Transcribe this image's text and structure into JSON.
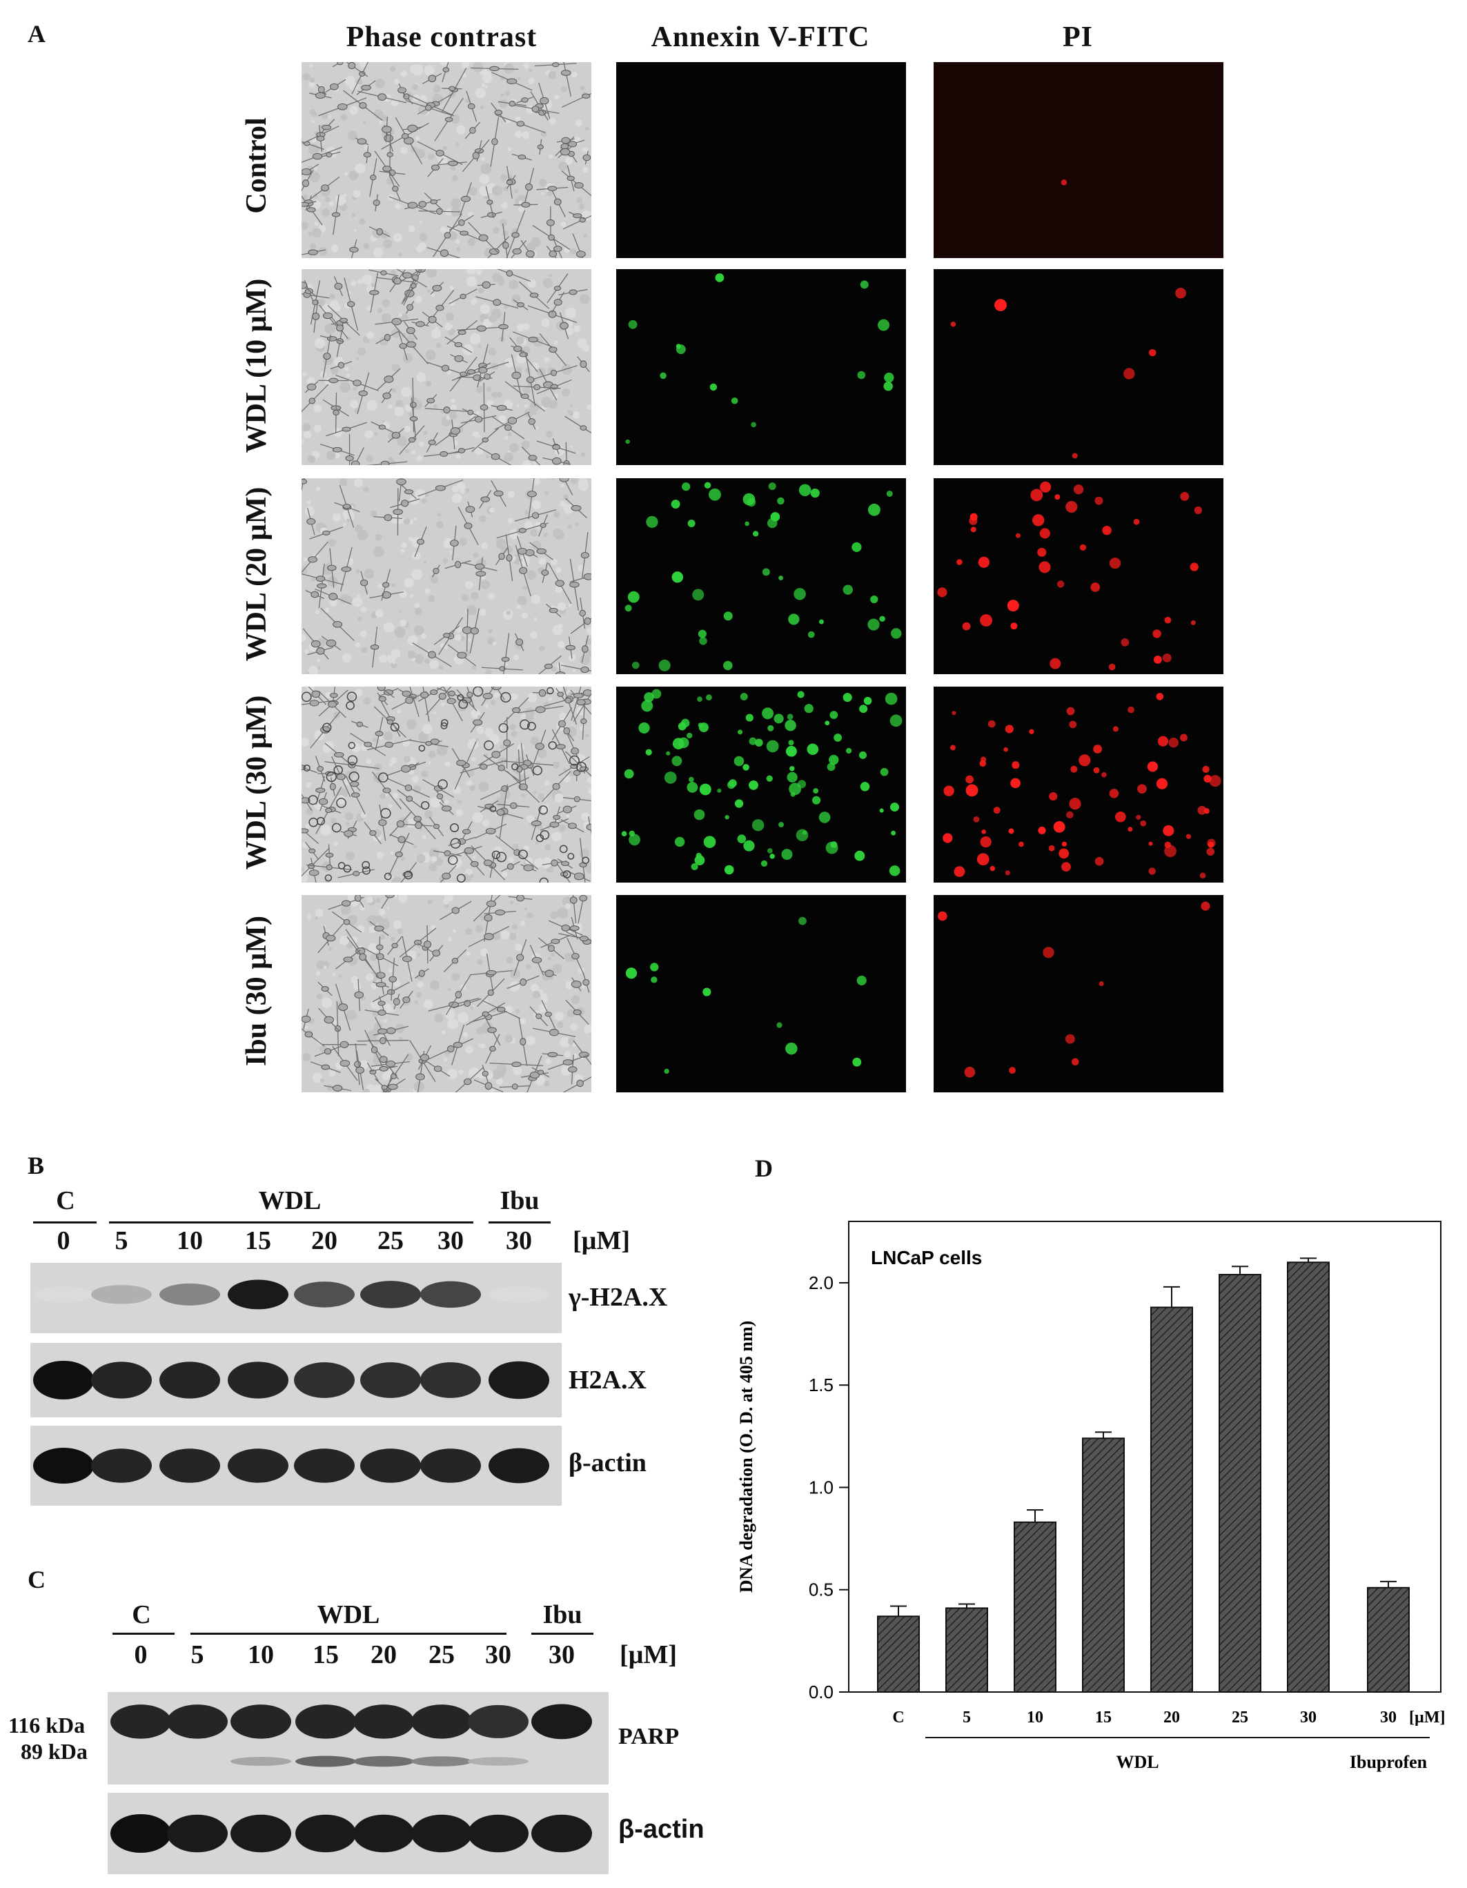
{
  "panelA": {
    "letter": "A",
    "columns": [
      "Phase contrast",
      "Annexin V-FITC",
      "PI"
    ],
    "rows": [
      "Control",
      "WDL (10 µM)",
      "WDL (20 µM)",
      "WDL (30 µM)",
      "Ibu (30 µM)"
    ]
  },
  "panelB": {
    "letter": "B",
    "groups": {
      "control": "C",
      "treatment": "WDL",
      "reference": "Ibu"
    },
    "lanes": [
      "0",
      "5",
      "10",
      "15",
      "20",
      "25",
      "30",
      "30"
    ],
    "unit": "[µM]",
    "blots": [
      {
        "label": "γ-H2A.X",
        "intensities": [
          0.05,
          0.25,
          0.45,
          0.95,
          0.7,
          0.8,
          0.75,
          0.05
        ]
      },
      {
        "label": "H2A.X",
        "intensities": [
          1,
          0.9,
          0.9,
          0.9,
          0.85,
          0.85,
          0.85,
          0.95
        ]
      },
      {
        "label": "β-actin",
        "intensities": [
          1,
          0.9,
          0.9,
          0.9,
          0.9,
          0.9,
          0.9,
          0.95
        ]
      }
    ]
  },
  "panelC": {
    "letter": "C",
    "groups": {
      "control": "C",
      "treatment": "WDL",
      "reference": "Ibu"
    },
    "lanes": [
      "0",
      "5",
      "10",
      "15",
      "20",
      "25",
      "30",
      "30"
    ],
    "unit": "[µM]",
    "markers": [
      "116 kDa",
      "89 kDa"
    ],
    "blots": [
      {
        "label": "PARP",
        "upper": [
          0.9,
          0.9,
          0.9,
          0.9,
          0.9,
          0.9,
          0.85,
          0.95
        ],
        "lower": [
          0,
          0,
          0.3,
          0.6,
          0.55,
          0.45,
          0.25,
          0
        ]
      },
      {
        "label": "β-actin",
        "intensities": [
          1,
          0.95,
          0.95,
          0.95,
          0.95,
          0.95,
          0.95,
          0.95
        ]
      }
    ]
  },
  "panelD": {
    "letter": "D",
    "chart_data": {
      "type": "bar",
      "title": "LNCaP cells",
      "ylabel": "DNA degradation (O. D. at 405 nm)",
      "categories": [
        "C",
        "5",
        "10",
        "15",
        "20",
        "25",
        "30",
        "30"
      ],
      "values": [
        0.37,
        0.41,
        0.83,
        1.24,
        1.88,
        2.04,
        2.1,
        0.51
      ],
      "errors": [
        0.05,
        0.02,
        0.06,
        0.03,
        0.1,
        0.04,
        0.02,
        0.03
      ],
      "ylim": [
        0,
        2.3
      ],
      "yticks": [
        "0.0",
        "0.5",
        "1.0",
        "1.5",
        "2.0"
      ],
      "unit": "[µM]",
      "groups": [
        {
          "label": "WDL",
          "from": 1,
          "to": 6
        },
        {
          "label": "Ibuprofen",
          "from": 7,
          "to": 7
        }
      ],
      "bar_color": "#555555"
    }
  }
}
